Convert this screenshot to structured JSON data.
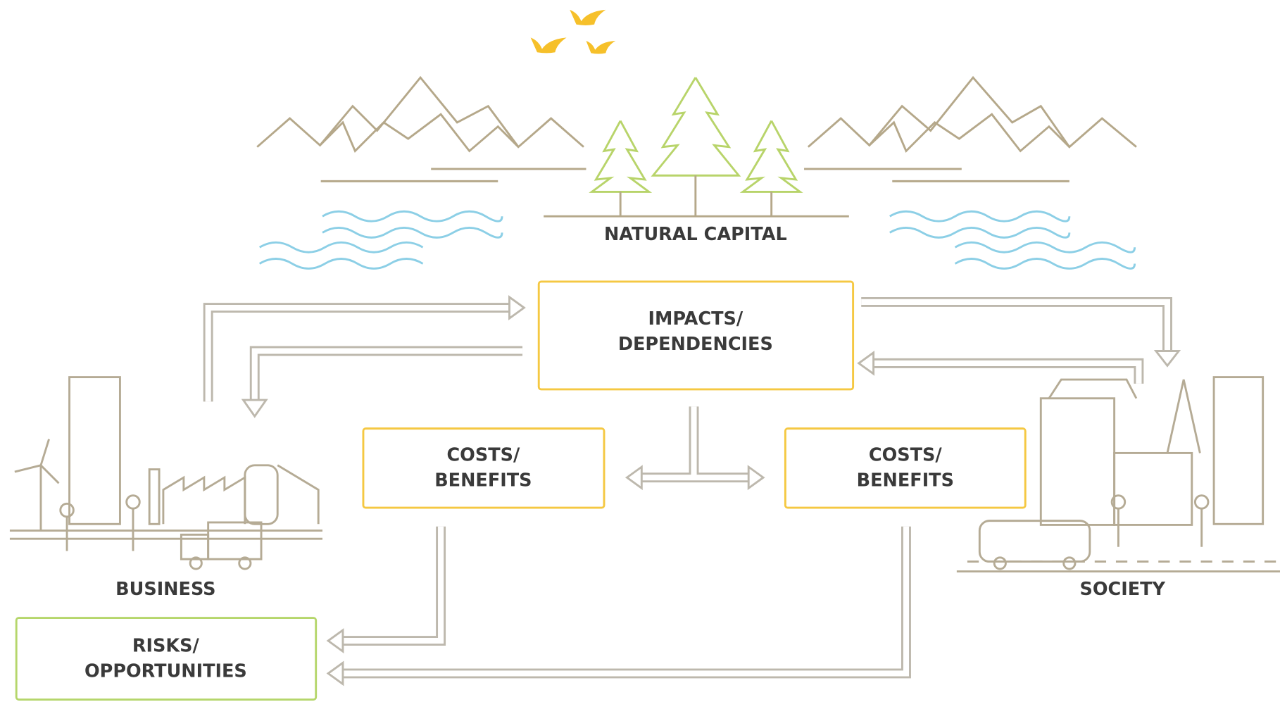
{
  "labels": {
    "natural_capital": "NATURAL CAPITAL",
    "business": "BUSINESS",
    "society": "SOCIETY"
  },
  "boxes": [
    {
      "lines": [
        "IMPACTS/",
        "DEPENDENCIES"
      ]
    },
    {
      "lines": [
        "COSTS/",
        "BENEFITS"
      ]
    },
    {
      "lines": [
        "COSTS/",
        "BENEFITS"
      ]
    },
    {
      "lines": [
        "RISKS/",
        "OPPORTUNITIES"
      ]
    }
  ]
}
